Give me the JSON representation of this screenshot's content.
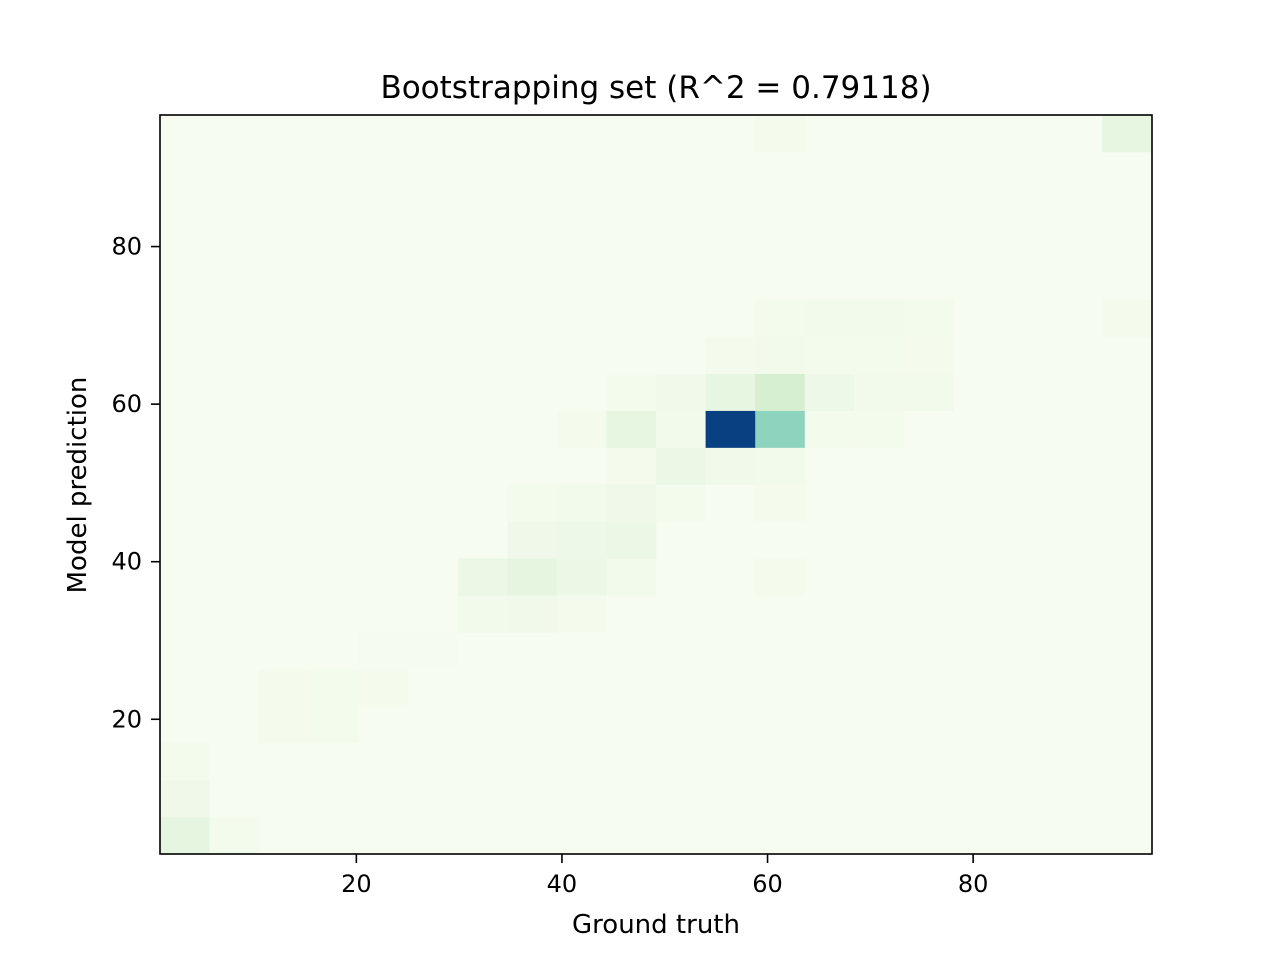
{
  "chart_data": {
    "type": "heatmap",
    "title": "Bootstrapping set (R^2 = 0.79118)",
    "xlabel": "Ground truth",
    "ylabel": "Model prediction",
    "xlim": [
      0.9,
      97.4
    ],
    "ylim": [
      2.9,
      96.7
    ],
    "x_ticks": [
      20,
      40,
      60,
      80
    ],
    "y_ticks": [
      20,
      40,
      60,
      80
    ],
    "x_tick_labels": [
      "20",
      "40",
      "60",
      "80"
    ],
    "y_tick_labels": [
      "20",
      "40",
      "60",
      "80"
    ],
    "bins_x": 20,
    "bins_y": 20,
    "colormap": "GnBu",
    "colors": {
      "low": "#f7fcf0",
      "mid_low": "#e0f3db",
      "mid": "#ccebc5",
      "mid_high": "#a8ddb5",
      "high_mid": "#7bccc4",
      "high": "#2b8cbe",
      "max": "#084081"
    },
    "grid": false,
    "legend": "none",
    "cells": [
      [
        0,
        0,
        0.1
      ],
      [
        1,
        0,
        0.02
      ],
      [
        0,
        1,
        0.04
      ],
      [
        0,
        2,
        0.02
      ],
      [
        2,
        3,
        0.015
      ],
      [
        3,
        3,
        0.02
      ],
      [
        2,
        4,
        0.015
      ],
      [
        3,
        4,
        0.02
      ],
      [
        4,
        4,
        0.015
      ],
      [
        4,
        5,
        0.01
      ],
      [
        5,
        5,
        0.01
      ],
      [
        6,
        6,
        0.03
      ],
      [
        7,
        6,
        0.035
      ],
      [
        8,
        6,
        0.015
      ],
      [
        6,
        7,
        0.06
      ],
      [
        7,
        7,
        0.1
      ],
      [
        8,
        7,
        0.06
      ],
      [
        9,
        7,
        0.03
      ],
      [
        12,
        7,
        0.015
      ],
      [
        7,
        8,
        0.04
      ],
      [
        8,
        8,
        0.05
      ],
      [
        9,
        8,
        0.06
      ],
      [
        7,
        9,
        0.02
      ],
      [
        8,
        9,
        0.025
      ],
      [
        9,
        9,
        0.04
      ],
      [
        10,
        9,
        0.02
      ],
      [
        12,
        9,
        0.015
      ],
      [
        9,
        10,
        0.015
      ],
      [
        10,
        10,
        0.06
      ],
      [
        11,
        10,
        0.035
      ],
      [
        12,
        10,
        0.03
      ],
      [
        8,
        11,
        0.015
      ],
      [
        9,
        11,
        0.09
      ],
      [
        10,
        11,
        0.03
      ],
      [
        11,
        11,
        1.0
      ],
      [
        12,
        11,
        0.45
      ],
      [
        13,
        11,
        0.02
      ],
      [
        14,
        11,
        0.02
      ],
      [
        9,
        12,
        0.02
      ],
      [
        10,
        12,
        0.035
      ],
      [
        11,
        12,
        0.09
      ],
      [
        12,
        12,
        0.18
      ],
      [
        13,
        12,
        0.05
      ],
      [
        14,
        12,
        0.03
      ],
      [
        15,
        12,
        0.025
      ],
      [
        11,
        13,
        0.015
      ],
      [
        12,
        13,
        0.03
      ],
      [
        13,
        13,
        0.02
      ],
      [
        14,
        13,
        0.02
      ],
      [
        15,
        13,
        0.015
      ],
      [
        12,
        14,
        0.02
      ],
      [
        13,
        14,
        0.025
      ],
      [
        14,
        14,
        0.025
      ],
      [
        15,
        14,
        0.02
      ],
      [
        19,
        14,
        0.015
      ],
      [
        19,
        19,
        0.09
      ],
      [
        12,
        19,
        0.015
      ]
    ]
  }
}
